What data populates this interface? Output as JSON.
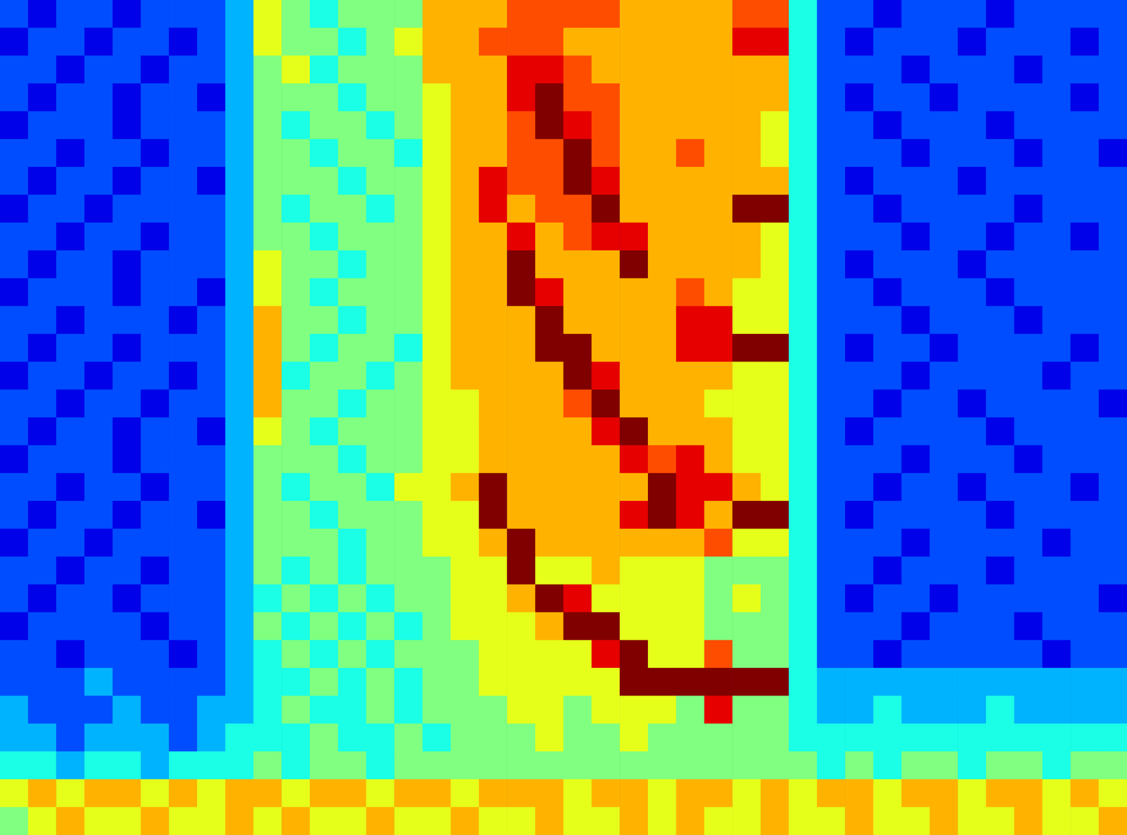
{
  "chart_data": {
    "type": "heatmap",
    "tick_labels": false,
    "value_range": [
      0,
      10
    ],
    "cells": [
      [
        2,
        1,
        2,
        2,
        1,
        2,
        2,
        2,
        3,
        6,
        5,
        4,
        5,
        5,
        5,
        7,
        7,
        7,
        8,
        8,
        8,
        8,
        7,
        7,
        7,
        7,
        8,
        8,
        4,
        2,
        2,
        1,
        2,
        2,
        2,
        1,
        2,
        2,
        2,
        2
      ],
      [
        1,
        2,
        2,
        1,
        2,
        2,
        1,
        2,
        3,
        6,
        5,
        5,
        4,
        5,
        6,
        7,
        7,
        8,
        8,
        8,
        7,
        7,
        7,
        7,
        7,
        7,
        9,
        9,
        4,
        2,
        1,
        2,
        2,
        2,
        1,
        2,
        2,
        2,
        1,
        2
      ],
      [
        2,
        2,
        1,
        2,
        2,
        1,
        2,
        2,
        3,
        5,
        6,
        4,
        5,
        5,
        5,
        7,
        7,
        7,
        9,
        9,
        8,
        7,
        7,
        7,
        7,
        7,
        7,
        7,
        4,
        2,
        2,
        2,
        1,
        2,
        2,
        2,
        1,
        2,
        2,
        2
      ],
      [
        2,
        1,
        2,
        2,
        1,
        2,
        2,
        1,
        3,
        5,
        5,
        5,
        4,
        5,
        5,
        6,
        7,
        7,
        9,
        10,
        8,
        8,
        7,
        7,
        7,
        7,
        7,
        7,
        4,
        2,
        1,
        2,
        2,
        1,
        2,
        2,
        2,
        2,
        1,
        2
      ],
      [
        1,
        2,
        2,
        2,
        1,
        2,
        2,
        2,
        3,
        5,
        4,
        5,
        5,
        4,
        5,
        6,
        7,
        7,
        8,
        10,
        9,
        8,
        7,
        7,
        7,
        7,
        7,
        6,
        4,
        2,
        2,
        1,
        2,
        2,
        2,
        1,
        2,
        2,
        2,
        2
      ],
      [
        2,
        2,
        1,
        2,
        2,
        1,
        2,
        2,
        3,
        5,
        5,
        4,
        5,
        5,
        4,
        6,
        7,
        7,
        8,
        8,
        10,
        8,
        7,
        7,
        8,
        7,
        7,
        6,
        4,
        2,
        2,
        2,
        1,
        2,
        2,
        2,
        1,
        2,
        2,
        1
      ],
      [
        2,
        1,
        2,
        2,
        1,
        2,
        2,
        1,
        3,
        5,
        5,
        5,
        4,
        5,
        5,
        6,
        7,
        9,
        8,
        8,
        10,
        9,
        7,
        7,
        7,
        7,
        7,
        7,
        4,
        2,
        1,
        2,
        2,
        2,
        1,
        2,
        2,
        2,
        2,
        2
      ],
      [
        1,
        2,
        2,
        1,
        2,
        2,
        2,
        2,
        3,
        5,
        4,
        5,
        5,
        4,
        5,
        6,
        7,
        9,
        7,
        8,
        8,
        10,
        7,
        7,
        7,
        7,
        10,
        10,
        4,
        2,
        2,
        1,
        2,
        2,
        2,
        2,
        1,
        2,
        2,
        2
      ],
      [
        2,
        2,
        1,
        2,
        2,
        1,
        2,
        2,
        3,
        5,
        5,
        4,
        5,
        5,
        5,
        6,
        7,
        7,
        9,
        7,
        8,
        9,
        9,
        7,
        7,
        7,
        7,
        6,
        4,
        2,
        2,
        2,
        1,
        2,
        2,
        1,
        2,
        2,
        1,
        2
      ],
      [
        2,
        1,
        2,
        2,
        1,
        2,
        2,
        2,
        3,
        6,
        5,
        5,
        4,
        5,
        5,
        6,
        7,
        7,
        10,
        7,
        7,
        7,
        10,
        7,
        7,
        7,
        7,
        6,
        4,
        2,
        1,
        2,
        2,
        2,
        1,
        2,
        2,
        2,
        2,
        2
      ],
      [
        1,
        2,
        2,
        2,
        1,
        2,
        2,
        1,
        3,
        6,
        5,
        4,
        5,
        5,
        5,
        6,
        7,
        7,
        10,
        9,
        7,
        7,
        7,
        7,
        8,
        7,
        6,
        6,
        4,
        2,
        2,
        1,
        2,
        2,
        2,
        1,
        2,
        2,
        2,
        2
      ],
      [
        2,
        2,
        1,
        2,
        2,
        2,
        1,
        2,
        3,
        7,
        5,
        5,
        4,
        5,
        5,
        6,
        7,
        7,
        7,
        10,
        7,
        7,
        7,
        7,
        9,
        9,
        6,
        6,
        4,
        2,
        2,
        2,
        1,
        2,
        2,
        2,
        1,
        2,
        2,
        2
      ],
      [
        2,
        1,
        2,
        2,
        1,
        2,
        2,
        2,
        3,
        7,
        5,
        4,
        5,
        5,
        4,
        6,
        7,
        7,
        7,
        10,
        10,
        7,
        7,
        7,
        9,
        9,
        10,
        10,
        4,
        2,
        1,
        2,
        2,
        1,
        2,
        2,
        2,
        2,
        1,
        2
      ],
      [
        1,
        2,
        2,
        1,
        2,
        2,
        1,
        2,
        3,
        7,
        4,
        5,
        5,
        4,
        5,
        6,
        7,
        7,
        7,
        7,
        10,
        9,
        7,
        7,
        7,
        7,
        6,
        6,
        4,
        2,
        2,
        2,
        1,
        2,
        2,
        2,
        2,
        1,
        2,
        2
      ],
      [
        2,
        2,
        1,
        2,
        2,
        1,
        2,
        2,
        3,
        7,
        5,
        5,
        4,
        5,
        5,
        6,
        6,
        7,
        7,
        7,
        8,
        10,
        7,
        7,
        7,
        6,
        6,
        6,
        4,
        2,
        2,
        1,
        2,
        2,
        1,
        2,
        2,
        2,
        2,
        1
      ],
      [
        2,
        1,
        2,
        2,
        1,
        2,
        2,
        1,
        3,
        6,
        5,
        4,
        5,
        5,
        5,
        6,
        6,
        7,
        7,
        7,
        7,
        9,
        10,
        7,
        7,
        7,
        6,
        6,
        4,
        2,
        1,
        2,
        2,
        2,
        2,
        1,
        2,
        2,
        2,
        2
      ],
      [
        1,
        2,
        2,
        2,
        1,
        2,
        2,
        2,
        3,
        5,
        5,
        5,
        4,
        5,
        5,
        6,
        6,
        7,
        7,
        7,
        7,
        7,
        9,
        8,
        9,
        7,
        6,
        6,
        4,
        2,
        2,
        2,
        1,
        2,
        2,
        2,
        1,
        2,
        2,
        2
      ],
      [
        2,
        2,
        1,
        2,
        2,
        1,
        2,
        2,
        3,
        5,
        4,
        5,
        5,
        4,
        6,
        6,
        7,
        10,
        7,
        7,
        7,
        7,
        7,
        10,
        9,
        9,
        7,
        6,
        4,
        2,
        2,
        1,
        2,
        2,
        1,
        2,
        2,
        2,
        1,
        2
      ],
      [
        2,
        1,
        2,
        2,
        1,
        2,
        2,
        1,
        3,
        5,
        5,
        4,
        5,
        5,
        5,
        6,
        6,
        10,
        7,
        7,
        7,
        7,
        9,
        10,
        9,
        7,
        10,
        10,
        4,
        2,
        1,
        2,
        2,
        2,
        2,
        1,
        2,
        2,
        2,
        2
      ],
      [
        1,
        2,
        2,
        1,
        2,
        2,
        2,
        2,
        3,
        5,
        5,
        5,
        4,
        5,
        5,
        6,
        6,
        7,
        10,
        7,
        7,
        7,
        7,
        7,
        7,
        8,
        6,
        6,
        4,
        2,
        2,
        2,
        1,
        2,
        2,
        2,
        2,
        1,
        2,
        2
      ],
      [
        2,
        2,
        1,
        2,
        2,
        1,
        2,
        2,
        3,
        5,
        4,
        5,
        4,
        5,
        5,
        5,
        6,
        6,
        10,
        6,
        6,
        7,
        6,
        6,
        6,
        5,
        5,
        5,
        4,
        2,
        2,
        1,
        2,
        2,
        2,
        1,
        2,
        2,
        2,
        2
      ],
      [
        2,
        1,
        2,
        2,
        1,
        2,
        2,
        2,
        3,
        4,
        5,
        4,
        5,
        4,
        5,
        5,
        6,
        6,
        7,
        10,
        9,
        6,
        6,
        6,
        6,
        5,
        6,
        5,
        4,
        2,
        1,
        2,
        2,
        1,
        2,
        2,
        2,
        2,
        2,
        1
      ],
      [
        1,
        2,
        2,
        2,
        2,
        1,
        2,
        2,
        3,
        5,
        4,
        5,
        4,
        5,
        4,
        5,
        6,
        6,
        6,
        7,
        10,
        10,
        6,
        6,
        6,
        5,
        5,
        5,
        4,
        2,
        2,
        2,
        1,
        2,
        2,
        2,
        1,
        2,
        2,
        2
      ],
      [
        2,
        2,
        1,
        2,
        2,
        2,
        1,
        2,
        3,
        4,
        5,
        4,
        5,
        4,
        5,
        5,
        5,
        6,
        6,
        6,
        6,
        9,
        10,
        6,
        6,
        8,
        5,
        5,
        4,
        2,
        2,
        1,
        2,
        2,
        2,
        2,
        2,
        1,
        2,
        2
      ],
      [
        2,
        2,
        2,
        3,
        2,
        2,
        2,
        2,
        3,
        4,
        4,
        5,
        4,
        5,
        4,
        5,
        5,
        6,
        6,
        6,
        6,
        6,
        10,
        10,
        10,
        10,
        10,
        10,
        4,
        3,
        3,
        3,
        3,
        3,
        3,
        3,
        3,
        3,
        3,
        3
      ],
      [
        3,
        2,
        2,
        2,
        3,
        2,
        2,
        3,
        3,
        4,
        5,
        4,
        4,
        5,
        4,
        5,
        5,
        5,
        6,
        6,
        5,
        6,
        6,
        6,
        5,
        9,
        5,
        5,
        4,
        3,
        3,
        4,
        3,
        3,
        3,
        4,
        3,
        3,
        3,
        3
      ],
      [
        3,
        3,
        2,
        3,
        3,
        3,
        2,
        3,
        4,
        4,
        4,
        5,
        4,
        4,
        5,
        4,
        5,
        5,
        5,
        6,
        5,
        5,
        6,
        5,
        5,
        5,
        5,
        5,
        4,
        4,
        4,
        4,
        4,
        4,
        4,
        4,
        4,
        4,
        4,
        4
      ],
      [
        4,
        4,
        3,
        4,
        4,
        3,
        4,
        4,
        4,
        5,
        4,
        5,
        5,
        4,
        5,
        5,
        5,
        5,
        5,
        5,
        5,
        5,
        5,
        5,
        5,
        5,
        5,
        5,
        5,
        4,
        5,
        4,
        5,
        5,
        4,
        5,
        5,
        4,
        5,
        5
      ],
      [
        6,
        7,
        6,
        7,
        7,
        6,
        7,
        6,
        7,
        7,
        6,
        7,
        7,
        6,
        7,
        7,
        6,
        7,
        7,
        7,
        6,
        7,
        7,
        6,
        7,
        7,
        6,
        7,
        6,
        7,
        7,
        6,
        7,
        7,
        6,
        7,
        7,
        6,
        7,
        6
      ],
      [
        5,
        6,
        7,
        6,
        6,
        7,
        6,
        6,
        7,
        6,
        7,
        6,
        6,
        7,
        6,
        6,
        7,
        6,
        6,
        7,
        6,
        6,
        7,
        6,
        7,
        6,
        6,
        7,
        6,
        6,
        7,
        6,
        6,
        7,
        6,
        6,
        7,
        6,
        6,
        7
      ]
    ]
  }
}
